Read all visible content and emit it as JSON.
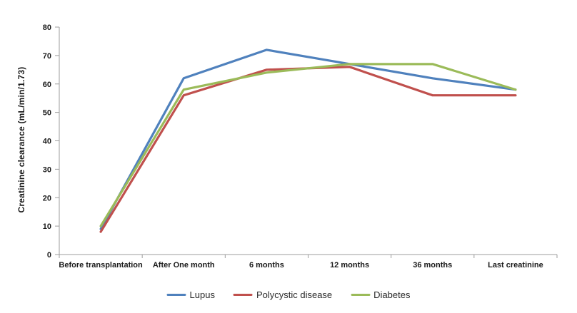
{
  "chart_data": {
    "type": "line",
    "title": "",
    "xlabel": "",
    "ylabel": "Creatinine clearance (mL/min/1.73)",
    "ylim": [
      0,
      80
    ],
    "ytick_step": 10,
    "grid": false,
    "legend_position": "bottom-center",
    "categories": [
      "Before transplantation",
      "After One month",
      "6 months",
      "12 months",
      "36 months",
      "Last creatinine"
    ],
    "series": [
      {
        "name": "Lupus",
        "color": "#4F81BD",
        "values": [
          9,
          62,
          72,
          67,
          62,
          58
        ]
      },
      {
        "name": "Polycystic disease",
        "color": "#C0504D",
        "values": [
          8,
          56,
          65,
          66,
          56,
          56
        ]
      },
      {
        "name": "Diabetes",
        "color": "#9BBB59",
        "values": [
          10,
          58,
          64,
          67,
          67,
          58
        ]
      }
    ],
    "axis_color": "#9d9d9d",
    "text_color": "#1a1a1a",
    "line_width": 3.2
  }
}
